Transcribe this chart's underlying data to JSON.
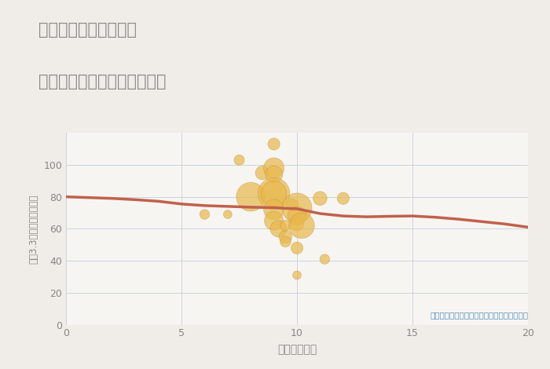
{
  "title_line1": "兵庫県宝塚市山本南の",
  "title_line2": "駅距離別中古マンション価格",
  "xlabel": "駅距離（分）",
  "ylabel": "坪（3.3㎡）単価（万円）",
  "annotation": "円の大きさは、取引のあった物件面積を示す",
  "background_color": "#f0ede8",
  "plot_bg_color": "#f7f5f2",
  "grid_color": "#c8d4e0",
  "scatter_color": "#e8b84b",
  "scatter_edge_color": "#c8943a",
  "line_color": "#c0614a",
  "title_color": "#888888",
  "axis_color": "#888888",
  "annotation_color": "#5090c0",
  "xlim": [
    0,
    20
  ],
  "ylim": [
    0,
    120
  ],
  "xticks": [
    0,
    5,
    10,
    15,
    20
  ],
  "yticks": [
    0,
    20,
    40,
    60,
    80,
    100
  ],
  "scatter_x": [
    6.0,
    7.0,
    7.5,
    8.0,
    8.5,
    9.0,
    9.0,
    9.0,
    9.0,
    9.0,
    9.0,
    9.0,
    9.2,
    9.5,
    9.5,
    9.5,
    9.8,
    10.0,
    10.0,
    10.0,
    10.0,
    10.0,
    10.2,
    11.0,
    11.2,
    12.0
  ],
  "scatter_y": [
    69,
    69,
    103,
    80,
    95,
    113,
    98,
    94,
    82,
    82,
    72,
    65,
    60,
    55,
    52,
    62,
    75,
    73,
    68,
    63,
    48,
    31,
    62,
    79,
    41,
    79
  ],
  "scatter_s": [
    80,
    60,
    90,
    700,
    160,
    120,
    350,
    250,
    850,
    550,
    350,
    300,
    230,
    140,
    100,
    95,
    120,
    750,
    300,
    160,
    120,
    60,
    550,
    160,
    80,
    120
  ],
  "trend_x": [
    0,
    1,
    2,
    3,
    4,
    5,
    6,
    7,
    8,
    9,
    9.5,
    10,
    11,
    12,
    13,
    14,
    15,
    16,
    17,
    18,
    19,
    20
  ],
  "trend_y": [
    80,
    79.5,
    79,
    78.2,
    77.2,
    75.5,
    74.5,
    74.0,
    73.5,
    73.2,
    72.8,
    72.5,
    69.5,
    68.0,
    67.5,
    67.8,
    68.0,
    67.2,
    66.0,
    64.5,
    63.0,
    61.0
  ]
}
